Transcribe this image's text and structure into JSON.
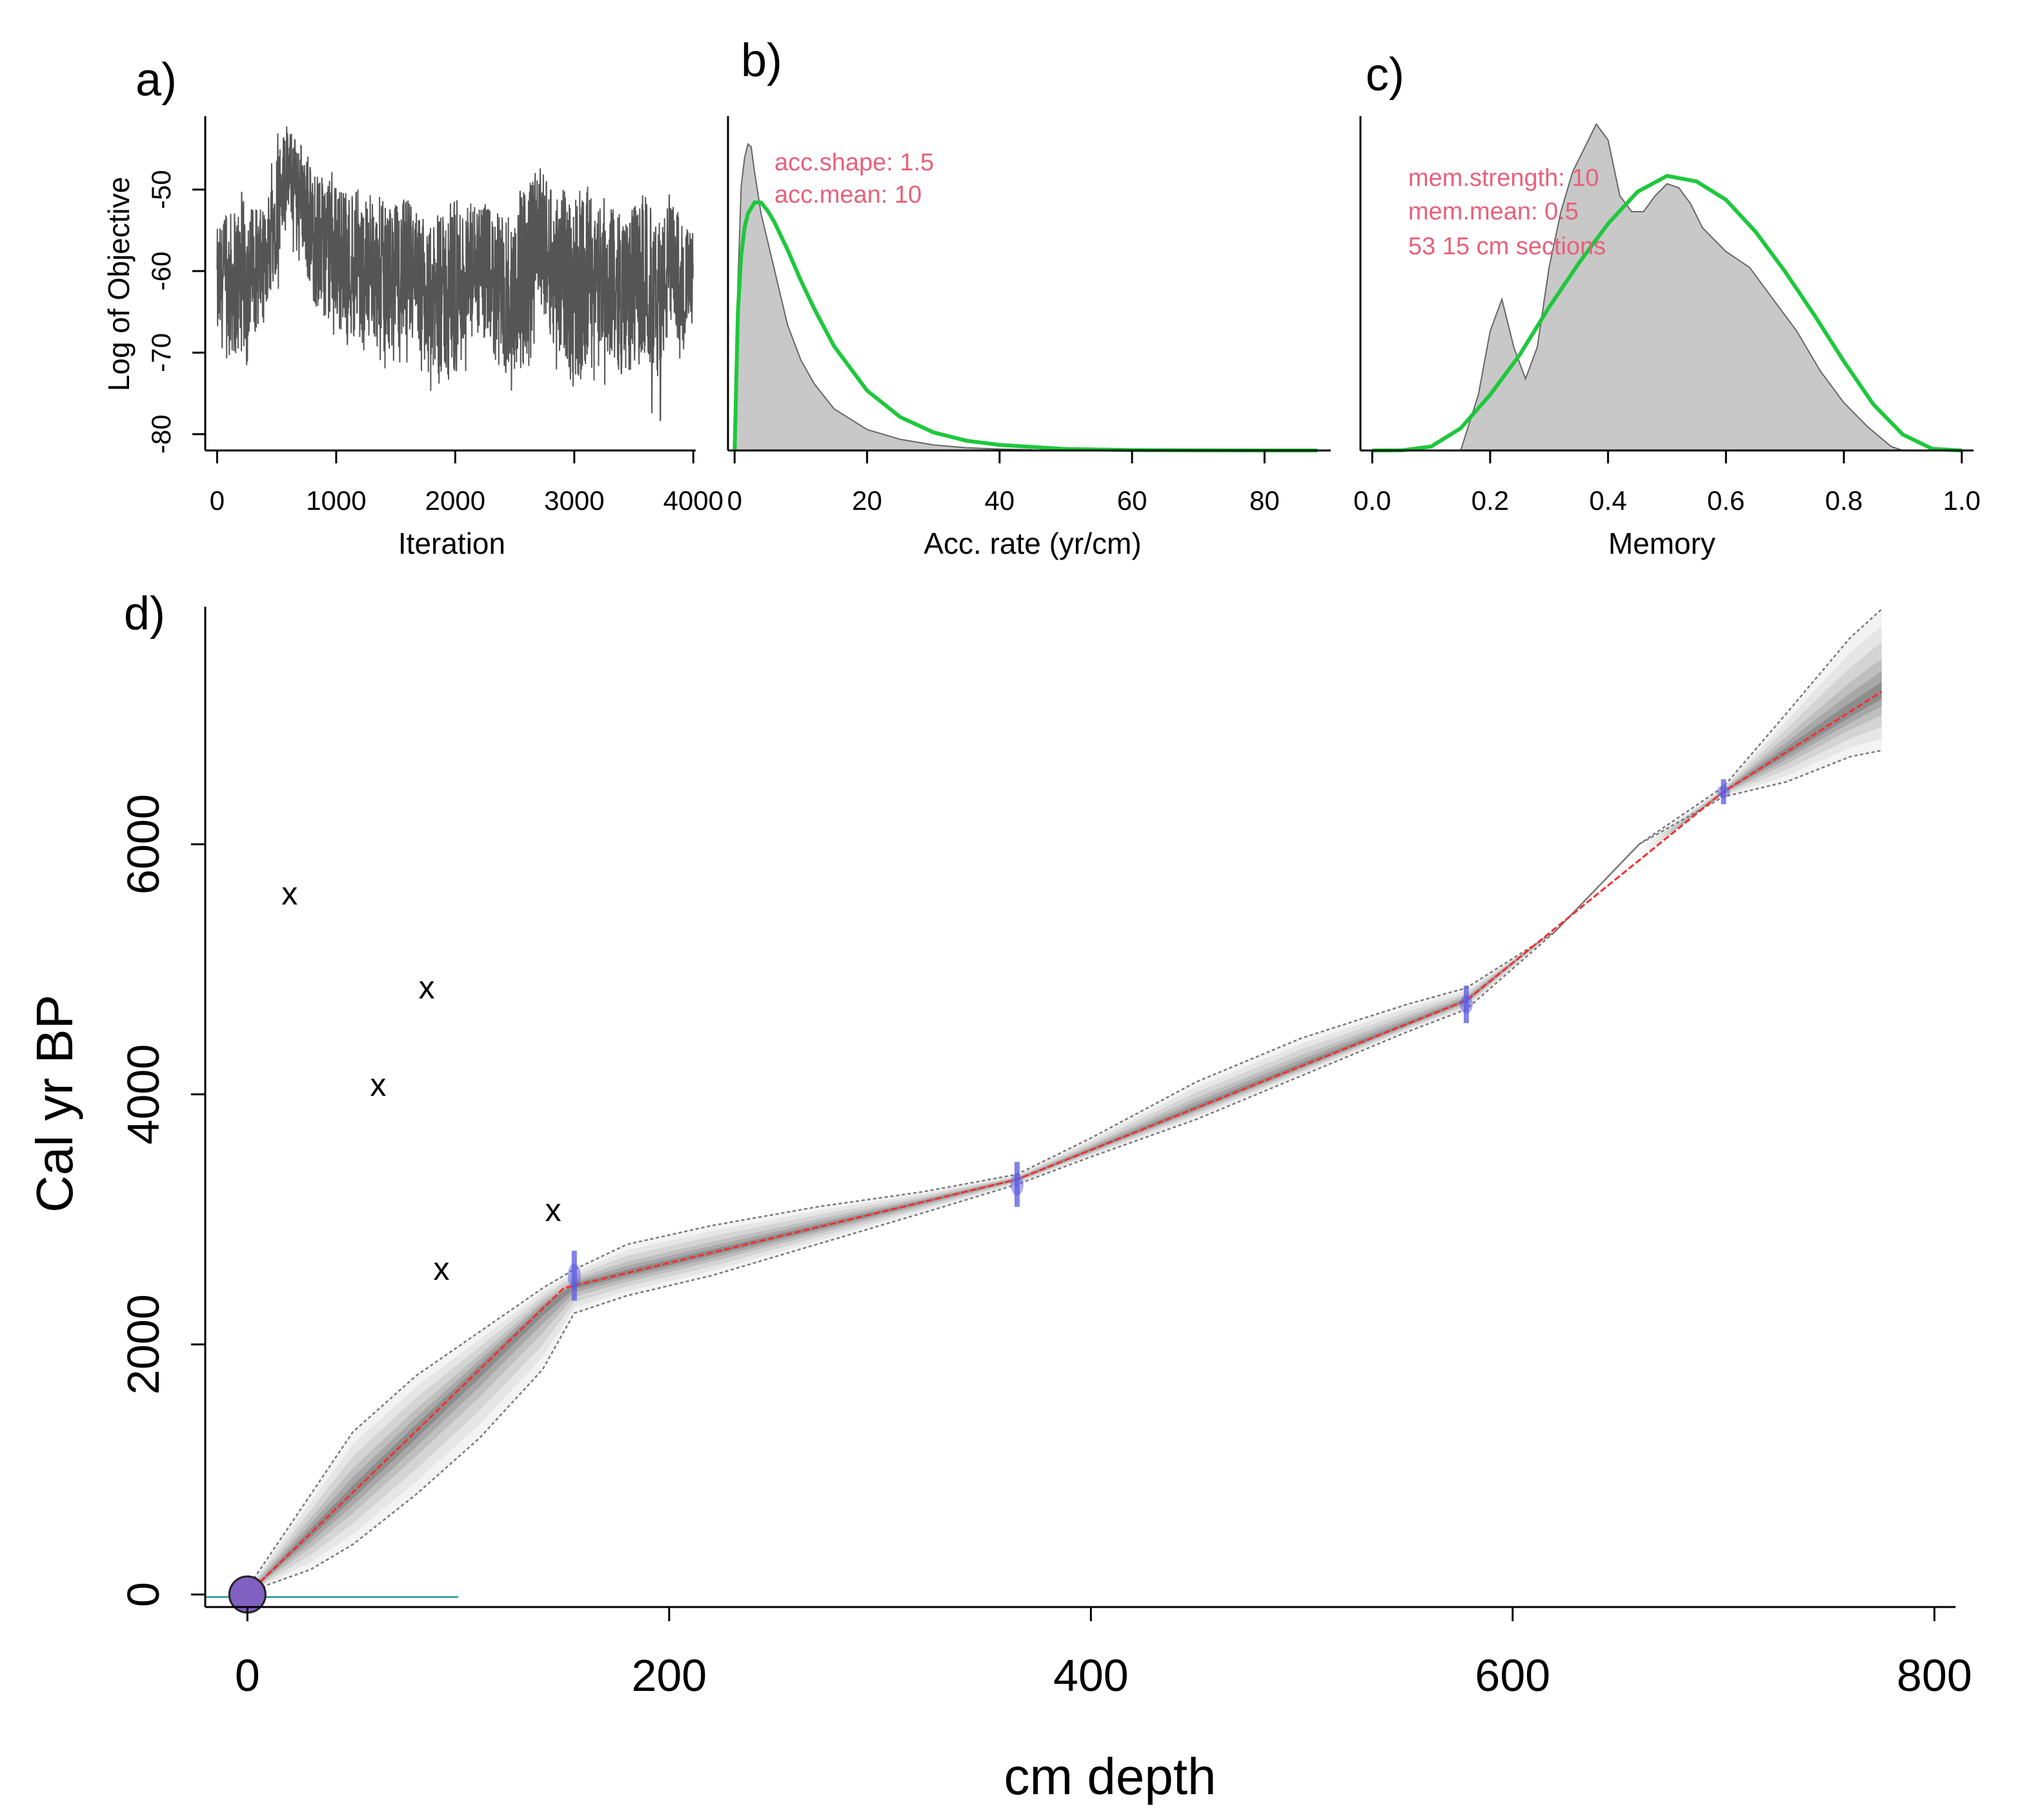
{
  "chart_data": [
    {
      "id": "a",
      "type": "line",
      "panel_label": "a)",
      "xlabel": "Iteration",
      "ylabel": "Log of Objective",
      "xlim": [
        -100,
        4020
      ],
      "ylim": [
        -82,
        -41
      ],
      "xticks": [
        0,
        1000,
        2000,
        3000,
        4000
      ],
      "yticks": [
        -80,
        -70,
        -60,
        -50
      ],
      "xtick_labels": [
        "0",
        "1000",
        "2000",
        "3000",
        "4000"
      ],
      "ytick_labels": [
        "-80",
        "-70",
        "-60",
        "-50"
      ],
      "series": [
        {
          "name": "Log of Objective",
          "x": [
            0,
            200,
            400,
            500,
            600,
            700,
            800,
            1000,
            1200,
            1400,
            1600,
            1800,
            2000,
            2200,
            2400,
            2600,
            2700,
            2800,
            3000,
            3200,
            3400,
            3600,
            3700,
            3800,
            4000
          ],
          "center": [
            -62,
            -61,
            -59,
            -52,
            -48,
            -50,
            -56,
            -58,
            -60,
            -61,
            -60,
            -64,
            -62,
            -60,
            -63,
            -61,
            -55,
            -59,
            -62,
            -60,
            -63,
            -61,
            -64,
            -60,
            -62
          ],
          "low": [
            -70,
            -73,
            -68,
            -63,
            -58,
            -60,
            -72,
            -69,
            -71,
            -72,
            -73,
            -75,
            -74,
            -71,
            -78,
            -74,
            -68,
            -72,
            -76,
            -73,
            -78,
            -74,
            -81,
            -73,
            -68
          ],
          "high": [
            -54,
            -50,
            -52,
            -43,
            -42,
            -43,
            -47,
            -48,
            -50,
            -51,
            -50,
            -54,
            -50,
            -51,
            -52,
            -49,
            -46,
            -49,
            -48,
            -50,
            -52,
            -50,
            -54,
            -50,
            -55
          ]
        }
      ]
    },
    {
      "id": "b",
      "type": "area",
      "panel_label": "b)",
      "xlabel": "Acc. rate (yr/cm)",
      "ylabel": "",
      "xlim": [
        -1,
        90
      ],
      "ylim": [
        0,
        0.24
      ],
      "xticks": [
        0,
        20,
        40,
        60,
        80
      ],
      "xtick_labels": [
        "0",
        "20",
        "40",
        "60",
        "80"
      ],
      "annotations": [
        "acc.shape:  1.5",
        "acc.mean:  10"
      ],
      "posterior": {
        "x": [
          0,
          0.5,
          1,
          1.5,
          2,
          2.5,
          3,
          4,
          5,
          6,
          7,
          8,
          10,
          12,
          15,
          20,
          25,
          30,
          35,
          40,
          45
        ],
        "y": [
          0,
          0.12,
          0.19,
          0.21,
          0.22,
          0.218,
          0.2,
          0.17,
          0.15,
          0.13,
          0.11,
          0.09,
          0.065,
          0.048,
          0.03,
          0.015,
          0.008,
          0.004,
          0.002,
          0.001,
          0.0005
        ]
      },
      "prior": {
        "x": [
          0,
          0.5,
          1,
          1.5,
          2,
          3,
          4,
          5,
          6,
          8,
          10,
          12,
          15,
          20,
          25,
          30,
          35,
          40,
          50,
          60,
          70,
          80,
          88
        ],
        "y": [
          0,
          0.1,
          0.14,
          0.16,
          0.17,
          0.178,
          0.178,
          0.172,
          0.164,
          0.144,
          0.122,
          0.102,
          0.075,
          0.043,
          0.024,
          0.013,
          0.007,
          0.004,
          0.001,
          0.0003,
          0.0001,
          0,
          0
        ]
      }
    },
    {
      "id": "c",
      "type": "area",
      "panel_label": "c)",
      "xlabel": "Memory",
      "ylabel": "",
      "xlim": [
        -0.02,
        1.02
      ],
      "ylim": [
        0,
        4.2
      ],
      "xticks": [
        0,
        0.2,
        0.4,
        0.6,
        0.8,
        1
      ],
      "xtick_labels": [
        "0.0",
        "0.2",
        "0.4",
        "0.6",
        "0.8",
        "1.0"
      ],
      "annotations": [
        "mem.strength: 10",
        "mem.mean: 0.5",
        "53 15 cm sections"
      ],
      "posterior": {
        "x": [
          0.15,
          0.18,
          0.2,
          0.22,
          0.24,
          0.26,
          0.28,
          0.3,
          0.32,
          0.34,
          0.36,
          0.38,
          0.4,
          0.42,
          0.44,
          0.46,
          0.48,
          0.5,
          0.52,
          0.54,
          0.56,
          0.6,
          0.64,
          0.68,
          0.72,
          0.76,
          0.8,
          0.84,
          0.88,
          0.9
        ],
        "y": [
          0,
          0.7,
          1.5,
          1.9,
          1.3,
          0.9,
          1.3,
          2.3,
          3.0,
          3.5,
          3.8,
          4.1,
          3.9,
          3.2,
          3.0,
          3.0,
          3.2,
          3.35,
          3.3,
          3.1,
          2.8,
          2.5,
          2.3,
          1.9,
          1.5,
          1.0,
          0.6,
          0.3,
          0.05,
          0
        ]
      },
      "prior": {
        "x": [
          0,
          0.05,
          0.1,
          0.15,
          0.2,
          0.25,
          0.3,
          0.35,
          0.4,
          0.45,
          0.5,
          0.55,
          0.6,
          0.65,
          0.7,
          0.75,
          0.8,
          0.85,
          0.9,
          0.95,
          1
        ],
        "y": [
          0,
          0.002,
          0.05,
          0.28,
          0.7,
          1.2,
          1.8,
          2.35,
          2.85,
          3.25,
          3.45,
          3.38,
          3.15,
          2.75,
          2.25,
          1.7,
          1.12,
          0.58,
          0.2,
          0.02,
          0
        ]
      }
    },
    {
      "id": "d",
      "type": "line",
      "panel_label": "d)",
      "xlabel": "cm depth",
      "ylabel": "Cal yr BP",
      "xlim": [
        -20,
        810
      ],
      "ylim": [
        -100,
        7900
      ],
      "xticks": [
        0,
        200,
        400,
        600,
        800
      ],
      "yticks": [
        0,
        2000,
        4000,
        6000
      ],
      "xtick_labels": [
        "0",
        "200",
        "400",
        "600",
        "800"
      ],
      "ytick_labels": [
        "0",
        "2000",
        "4000",
        "6000"
      ],
      "median": {
        "x": [
          0,
          150,
          365,
          578,
          700,
          775
        ],
        "y": [
          0,
          2450,
          3320,
          4750,
          6420,
          7220
        ]
      },
      "envelope": {
        "x": [
          0,
          10,
          30,
          50,
          80,
          110,
          140,
          155,
          180,
          220,
          270,
          320,
          365,
          400,
          450,
          500,
          550,
          578,
          620,
          660,
          700,
          730,
          760,
          775
        ],
        "upper": [
          50,
          300,
          800,
          1300,
          1750,
          2100,
          2450,
          2600,
          2800,
          2950,
          3100,
          3220,
          3360,
          3650,
          4100,
          4450,
          4720,
          4850,
          5300,
          6000,
          6460,
          7050,
          7650,
          7880
        ],
        "lower": [
          -20,
          80,
          200,
          400,
          800,
          1250,
          1800,
          2250,
          2390,
          2550,
          2800,
          3050,
          3280,
          3500,
          3800,
          4150,
          4500,
          4680,
          5300,
          6000,
          6380,
          6500,
          6700,
          6750
        ]
      },
      "dates": [
        {
          "x": 0,
          "y": 0,
          "sd": 40
        },
        {
          "x": 155,
          "y": 2550,
          "sd": 200
        },
        {
          "x": 365,
          "y": 3280,
          "sd": 180
        },
        {
          "x": 578,
          "y": 4720,
          "sd": 150
        },
        {
          "x": 700,
          "y": 6420,
          "sd": 100
        }
      ],
      "outliers": [
        {
          "x": 20,
          "y": 5600
        },
        {
          "x": 85,
          "y": 4850
        },
        {
          "x": 62,
          "y": 4070
        },
        {
          "x": 145,
          "y": 3070
        },
        {
          "x": 92,
          "y": 2600
        }
      ],
      "outlier_marker": "x"
    }
  ],
  "colors": {
    "axis": "#000000",
    "trace": "#555555",
    "posterior_fill": "#c8c8c8",
    "posterior_line": "#666666",
    "prior": "#1ec83c",
    "annotation": "#e8607a",
    "median": "#ff2a2a",
    "envelope": "#777777",
    "date": "#5a5ae0",
    "surface": "#8060c0",
    "surface_line": "#3aa8a8"
  }
}
